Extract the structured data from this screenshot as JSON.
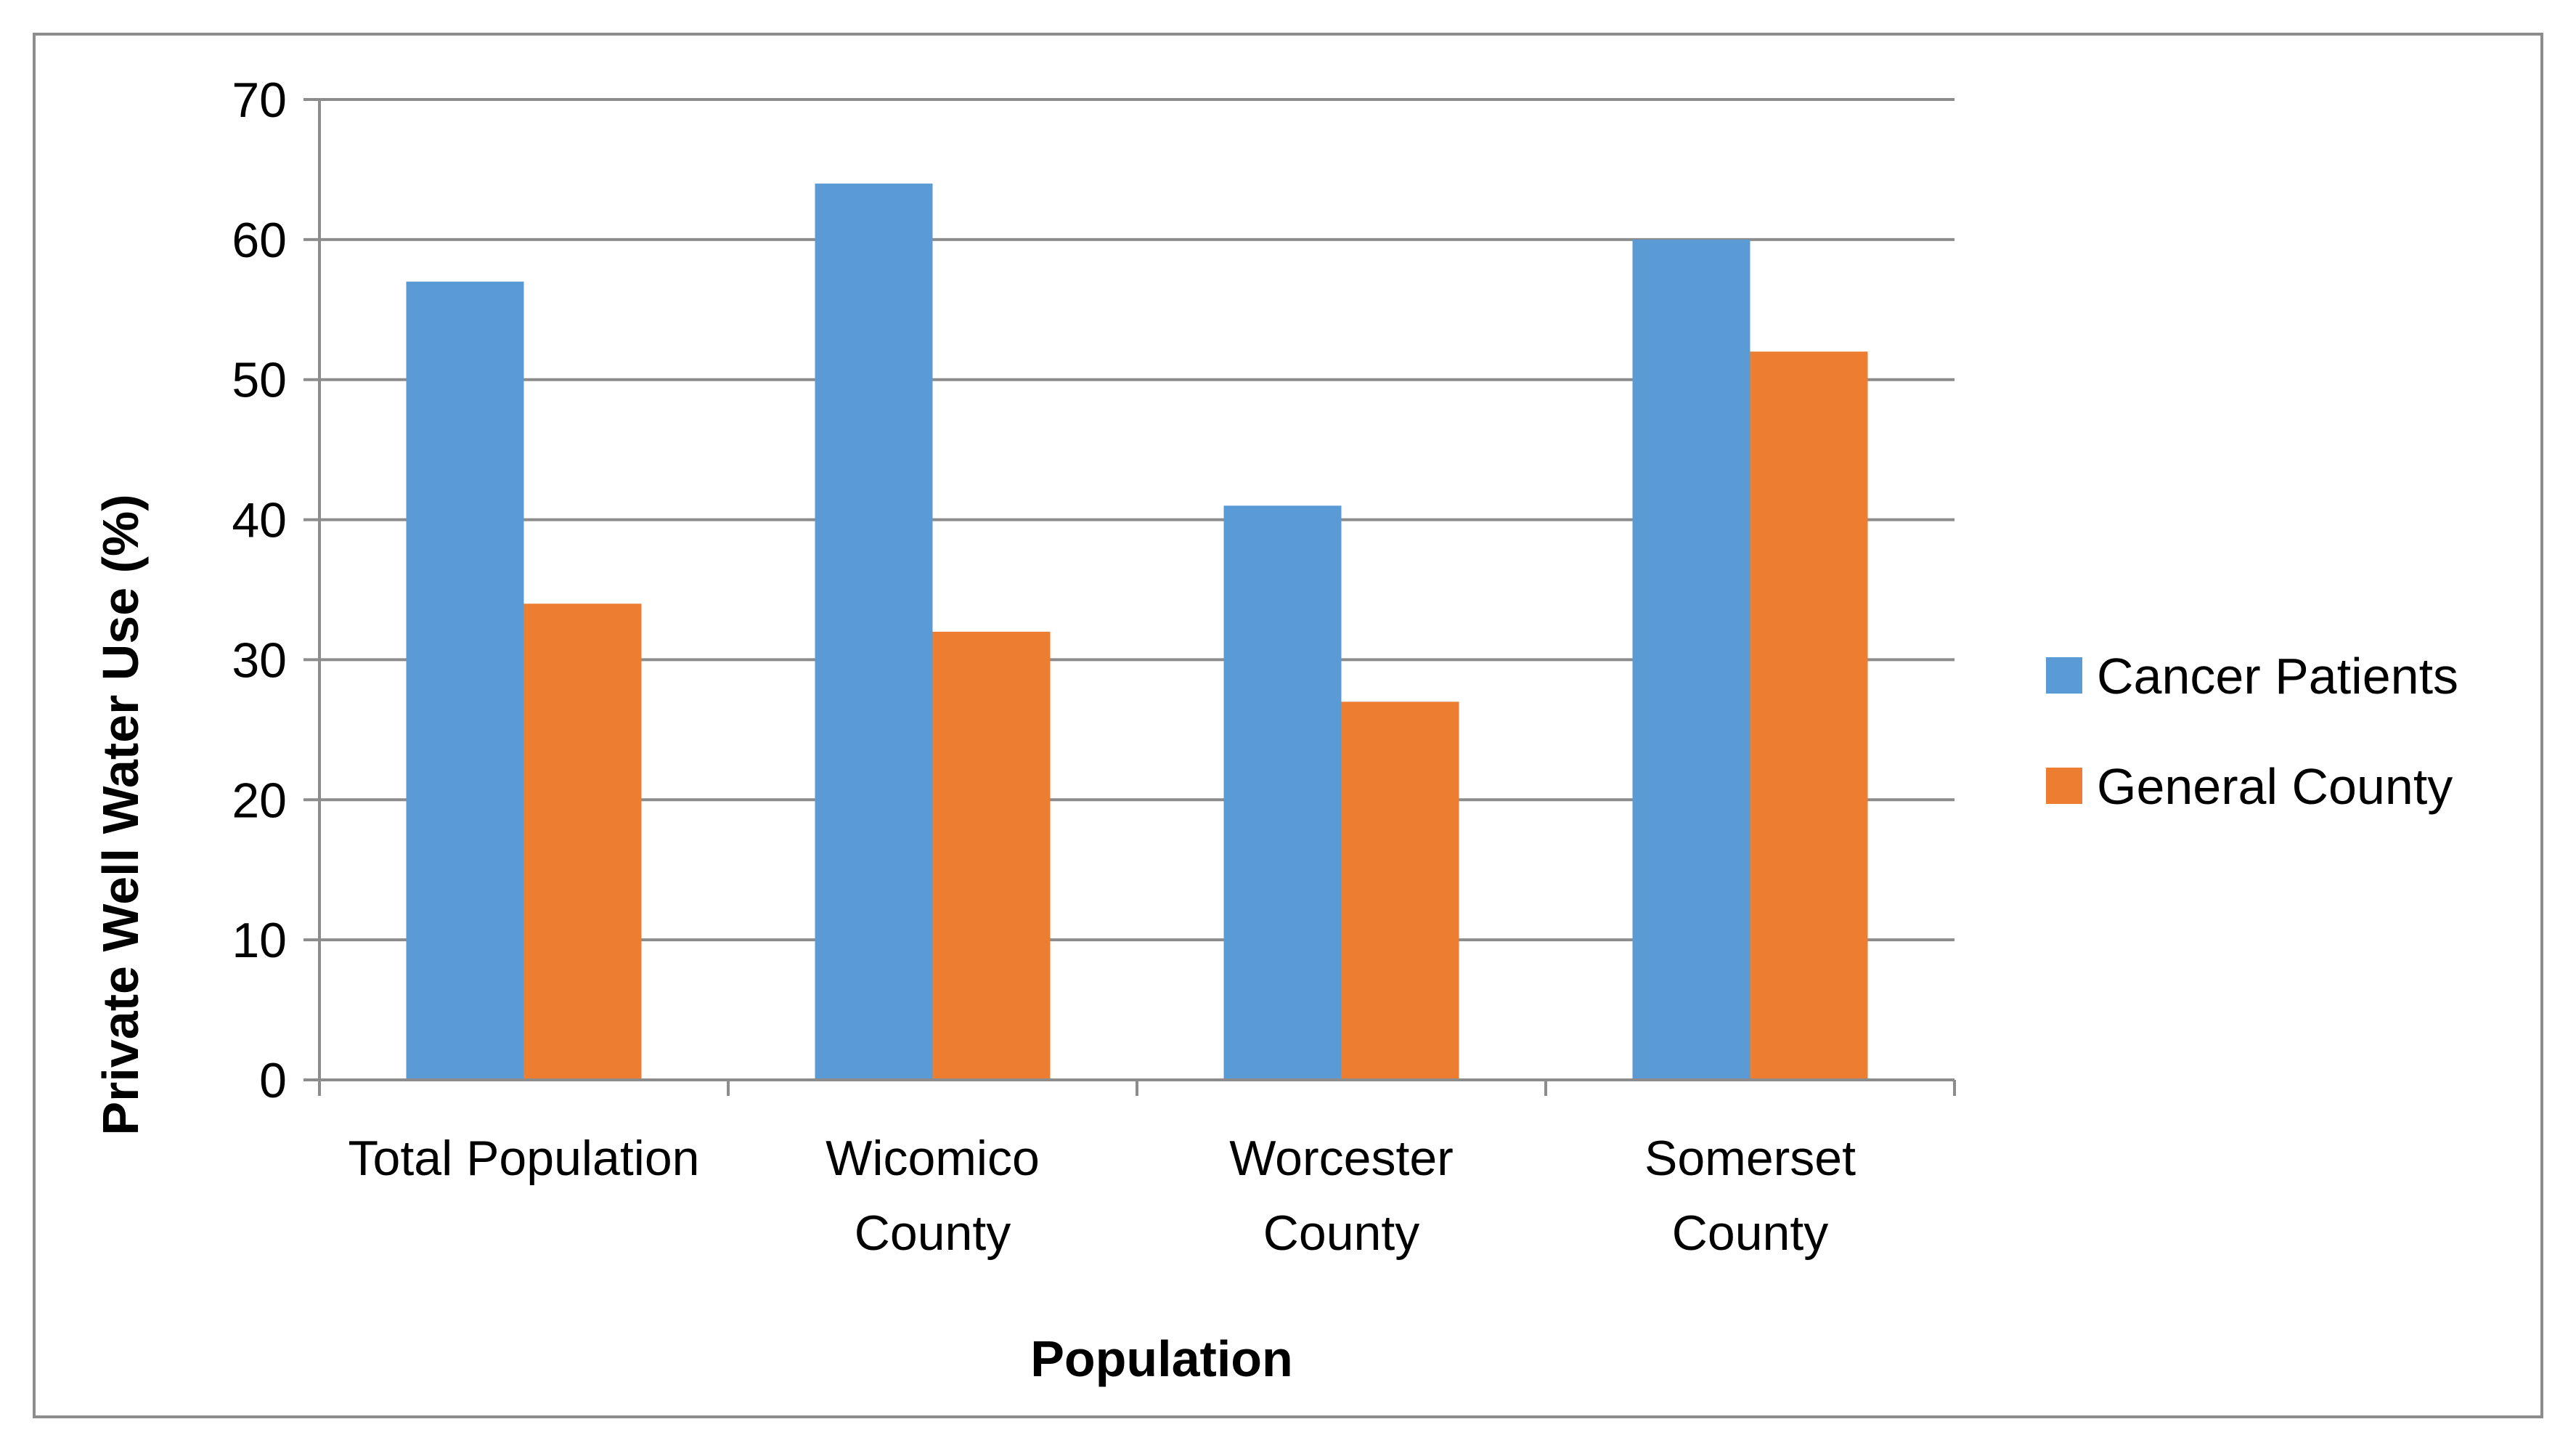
{
  "chart_data": {
    "type": "bar",
    "title": "",
    "xlabel": "Population",
    "ylabel": "Private Well Water Use (%)",
    "ylim": [
      0,
      70
    ],
    "ytick_step": 10,
    "grid": true,
    "legend_position": "right",
    "categories": [
      [
        "Total Population"
      ],
      [
        "Wicomico",
        "County"
      ],
      [
        "Worcester",
        "County"
      ],
      [
        "Somerset",
        "County"
      ]
    ],
    "series": [
      {
        "name": "Cancer Patients",
        "color": "#5b9bd5",
        "values": [
          57,
          64,
          41,
          60
        ]
      },
      {
        "name": "General County",
        "color": "#ed7d31",
        "values": [
          34,
          32,
          27,
          52
        ]
      }
    ]
  }
}
